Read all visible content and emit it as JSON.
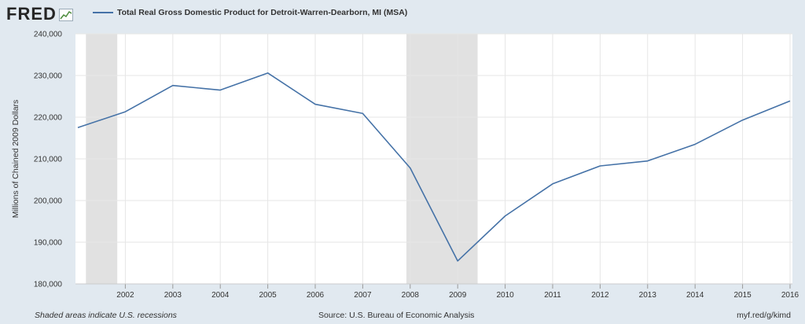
{
  "header": {
    "logo_text": "FRED",
    "logo_icon": "line-graph-icon",
    "legend_label": "Total Real Gross Domestic Product for Detroit-Warren-Dearborn, MI (MSA)"
  },
  "footer": {
    "note": "Shaded areas indicate U.S. recessions",
    "source": "Source: U.S. Bureau of Economic Analysis",
    "link": "myf.red/g/kimd"
  },
  "colors": {
    "background": "#e1e9f0",
    "plot_background": "#ffffff",
    "series": "#4572a7",
    "recession": "#e1e1e1",
    "grid": "#e6e6e6"
  },
  "chart_data": {
    "type": "line",
    "title": "",
    "xlabel": "",
    "ylabel": "Millions of Chained 2009 Dollars",
    "ylim": [
      180000,
      240000
    ],
    "yticks": [
      180000,
      190000,
      200000,
      210000,
      220000,
      230000,
      240000
    ],
    "ytick_labels": [
      "180,000",
      "190,000",
      "200,000",
      "210,000",
      "220,000",
      "230,000",
      "240,000"
    ],
    "xlim": [
      2000.95,
      2016.05
    ],
    "xticks": [
      2002,
      2003,
      2004,
      2005,
      2006,
      2007,
      2008,
      2009,
      2010,
      2011,
      2012,
      2013,
      2014,
      2015,
      2016
    ],
    "grid": true,
    "series": [
      {
        "name": "Total Real Gross Domestic Product for Detroit-Warren-Dearborn, MI (MSA)",
        "x": [
          2001,
          2002,
          2003,
          2004,
          2005,
          2006,
          2007,
          2008,
          2009,
          2010,
          2011,
          2012,
          2013,
          2014,
          2015,
          2016
        ],
        "values": [
          217500,
          221300,
          227600,
          226500,
          230600,
          223100,
          220900,
          207800,
          185500,
          196300,
          204000,
          208300,
          209500,
          213500,
          219300,
          223900
        ]
      }
    ],
    "recessions": [
      [
        2001.17,
        2001.83
      ],
      [
        2007.92,
        2009.42
      ]
    ]
  }
}
